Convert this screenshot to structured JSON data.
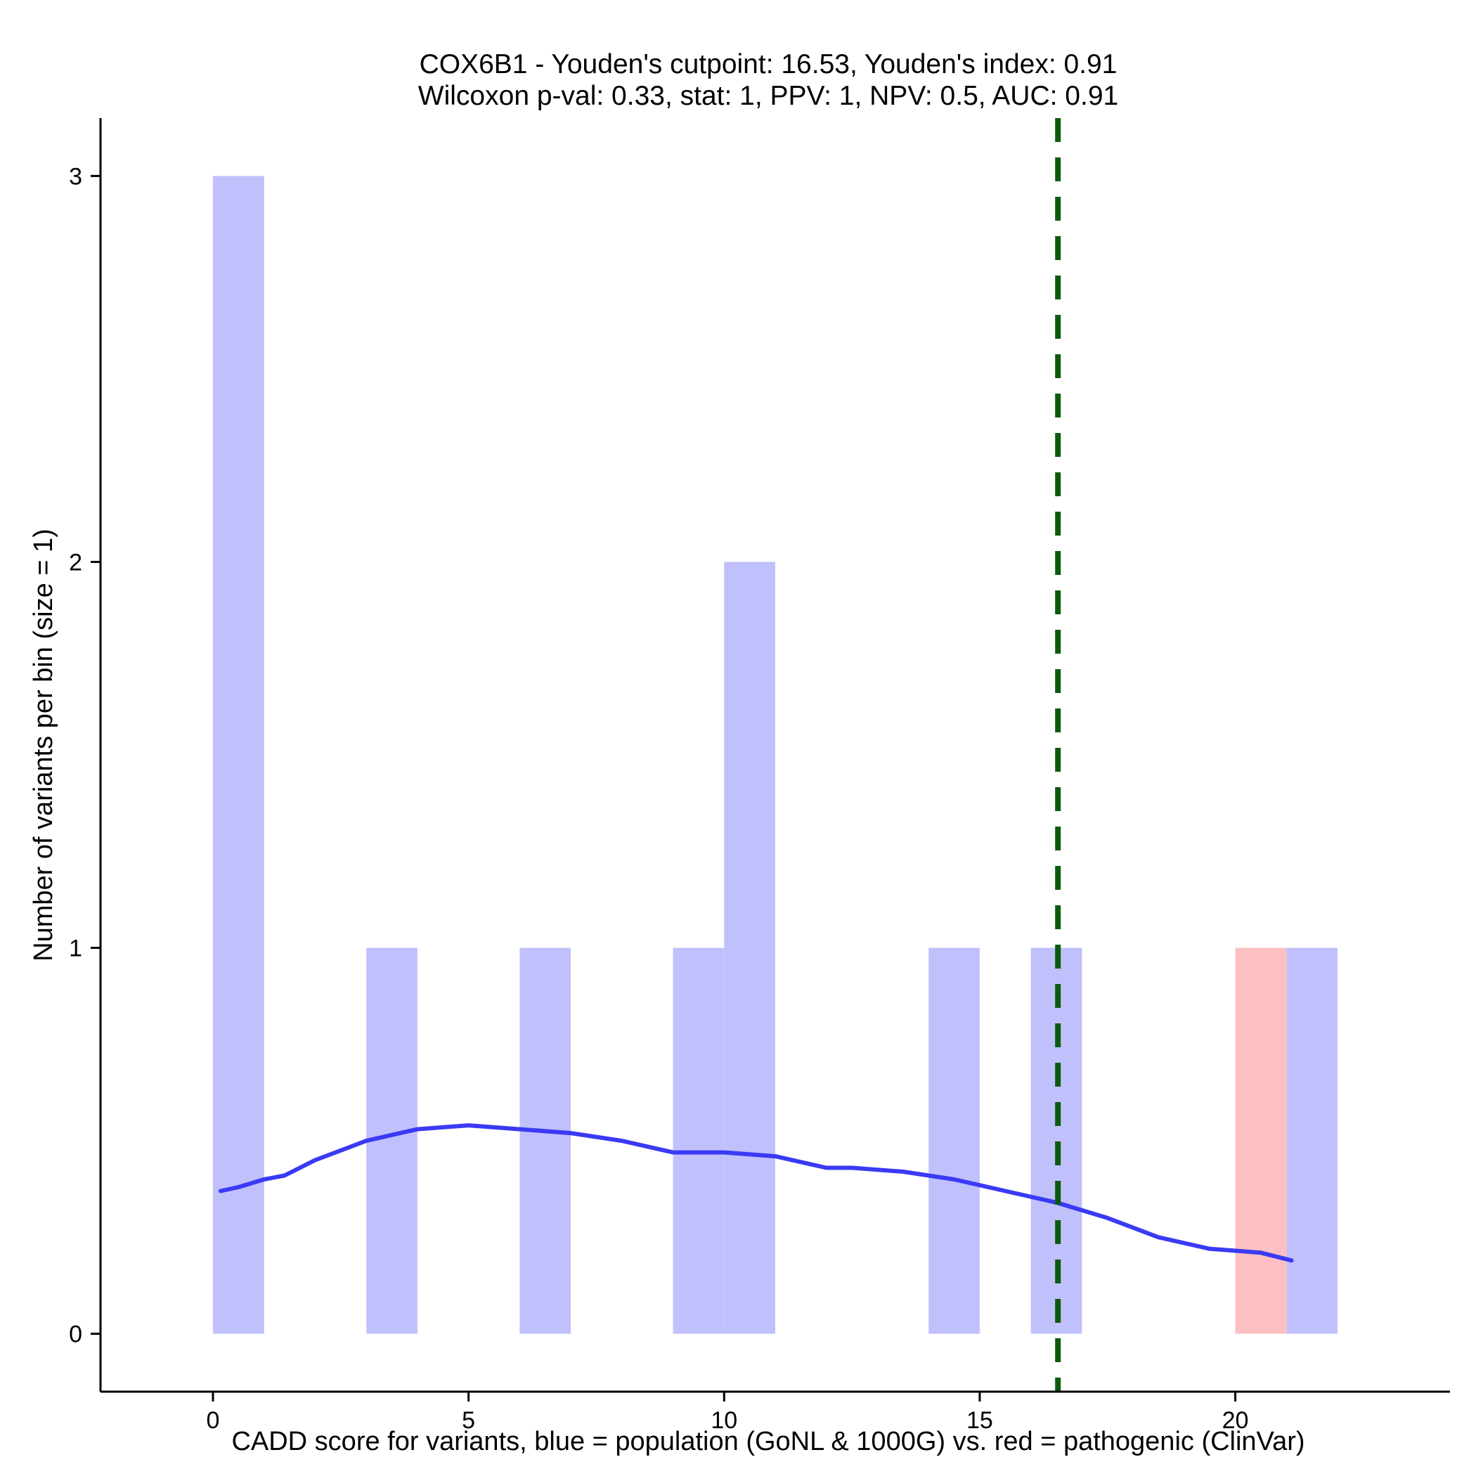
{
  "chart_data": {
    "type": "bar",
    "title_line1": "COX6B1 - Youden's cutpoint: 16.53, Youden's index: 0.91",
    "title_line2": "Wilcoxon p-val: 0.33, stat: 1, PPV: 1, NPV: 0.5, AUC: 0.91",
    "xlabel": "CADD score for variants, blue = population (GoNL & 1000G) vs. red = pathogenic (ClinVar)",
    "ylabel": "Number of variants per bin (size = 1)",
    "xlim": [
      -2.2,
      24.2
    ],
    "ylim": [
      -0.15,
      3.15
    ],
    "x_ticks": [
      0,
      5,
      10,
      15,
      20
    ],
    "y_ticks": [
      0,
      1,
      2,
      3
    ],
    "bin_width": 1,
    "series": [
      {
        "name": "population (GoNL & 1000G)",
        "color": "#c0c0fc",
        "bins": [
          {
            "start": 0,
            "count": 3
          },
          {
            "start": 3,
            "count": 1
          },
          {
            "start": 6,
            "count": 1
          },
          {
            "start": 9,
            "count": 1
          },
          {
            "start": 10,
            "count": 2
          },
          {
            "start": 14,
            "count": 1
          },
          {
            "start": 16,
            "count": 1
          },
          {
            "start": 21,
            "count": 1
          }
        ]
      },
      {
        "name": "pathogenic (ClinVar)",
        "color": "#fdc0c2",
        "bins": [
          {
            "start": 20,
            "count": 1
          }
        ]
      }
    ],
    "density_curve": {
      "color": "#3a3af5",
      "points": [
        [
          0.15,
          0.37
        ],
        [
          0.5,
          0.38
        ],
        [
          1.0,
          0.4
        ],
        [
          1.4,
          0.41
        ],
        [
          2.0,
          0.45
        ],
        [
          3.0,
          0.5
        ],
        [
          4.0,
          0.53
        ],
        [
          5.0,
          0.54
        ],
        [
          6.0,
          0.53
        ],
        [
          7.0,
          0.52
        ],
        [
          8.0,
          0.5
        ],
        [
          9.0,
          0.47
        ],
        [
          10.0,
          0.47
        ],
        [
          11.0,
          0.46
        ],
        [
          12.0,
          0.43
        ],
        [
          12.5,
          0.43
        ],
        [
          13.5,
          0.42
        ],
        [
          14.5,
          0.4
        ],
        [
          15.5,
          0.37
        ],
        [
          16.5,
          0.34
        ],
        [
          17.5,
          0.3
        ],
        [
          18.5,
          0.25
        ],
        [
          19.5,
          0.22
        ],
        [
          20.5,
          0.21
        ],
        [
          21.1,
          0.19
        ]
      ]
    },
    "cutpoint": {
      "value": 16.53,
      "color": "#0d5a0d",
      "style": "dashed"
    }
  }
}
